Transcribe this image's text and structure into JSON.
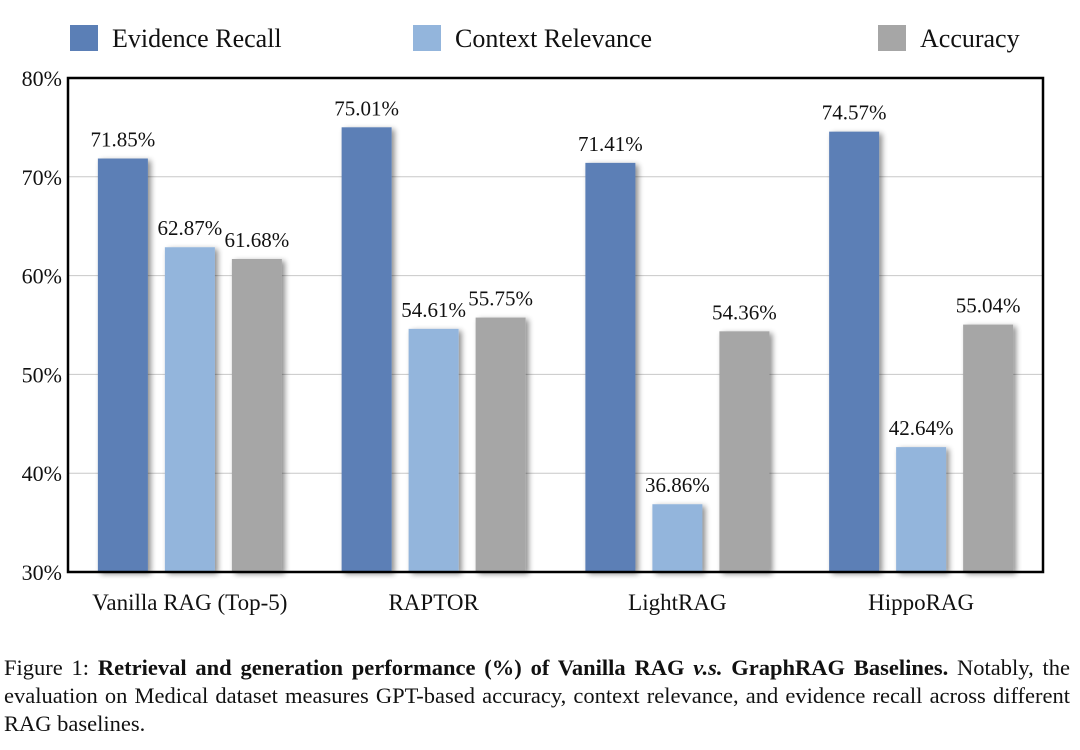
{
  "chart_data": {
    "type": "bar",
    "categories": [
      "Vanilla RAG (Top-5)",
      "RAPTOR",
      "LightRAG",
      "HippoRAG"
    ],
    "series": [
      {
        "name": "Evidence Recall",
        "color": "#5b7fb6",
        "values": [
          71.85,
          75.01,
          71.41,
          74.57
        ],
        "labels": [
          "71.85%",
          "75.01%",
          "71.41%",
          "74.57%"
        ]
      },
      {
        "name": "Context Relevance",
        "color": "#93b5dc",
        "values": [
          62.87,
          54.61,
          36.86,
          42.64
        ],
        "labels": [
          "62.87%",
          "54.61%",
          "36.86%",
          "42.64%"
        ]
      },
      {
        "name": "Accuracy",
        "color": "#a6a6a6",
        "values": [
          61.68,
          55.75,
          54.36,
          55.04
        ],
        "labels": [
          "61.68%",
          "55.75%",
          "54.36%",
          "55.04%"
        ]
      }
    ],
    "ylim": [
      30,
      80
    ],
    "yticks": [
      30,
      40,
      50,
      60,
      70,
      80
    ],
    "ytick_labels": [
      "30%",
      "40%",
      "50%",
      "60%",
      "70%",
      "80%"
    ],
    "grid": true,
    "legend_position": "top",
    "xlabel": "",
    "ylabel": ""
  },
  "caption": {
    "prefix": "Figure 1: ",
    "bold": "Retrieval and generation performance (%) of Vanilla RAG ",
    "bold_italic": "v.s.",
    "bold_tail": " GraphRAG Baselines.",
    "body": " Notably, the evaluation on Medical dataset measures GPT-based accuracy, context relevance, and evidence recall across different RAG baselines."
  }
}
